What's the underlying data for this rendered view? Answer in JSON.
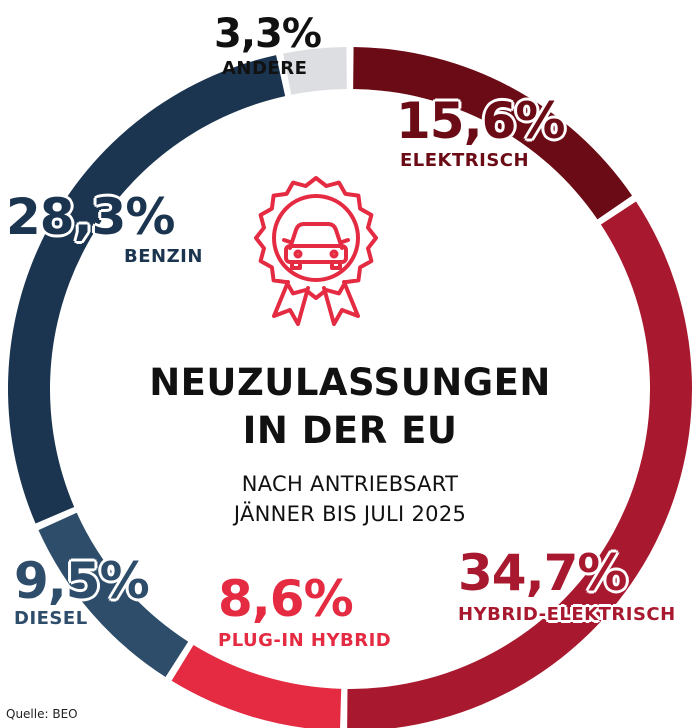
{
  "title_line1": "NEUZULASSUNGEN",
  "title_line2": "IN DER EU",
  "subtitle_line1": "NACH ANTRIEBSART",
  "subtitle_line2": "JÄNNER BIS JULI 2025",
  "source": "Quelle: BEO",
  "icon": "award-car-icon",
  "chart_data": {
    "type": "pie",
    "variant": "donut",
    "unit": "%",
    "slices": [
      {
        "name": "ELEKTRISCH",
        "value": 15.6,
        "label": "15,6%",
        "color": "#6b0b16"
      },
      {
        "name": "HYBRID-ELEKTRISCH",
        "value": 34.7,
        "label": "34,7%",
        "color": "#a8192f"
      },
      {
        "name": "PLUG-IN HYBRID",
        "value": 8.6,
        "label": "8,6%",
        "color": "#e42b42"
      },
      {
        "name": "DIESEL",
        "value": 9.5,
        "label": "9,5%",
        "color": "#2d4d6b"
      },
      {
        "name": "BENZIN",
        "value": 28.3,
        "label": "28,3%",
        "color": "#1b3550"
      },
      {
        "name": "ANDERE",
        "value": 3.3,
        "label": "3,3%",
        "color": "#dcdee1"
      }
    ]
  }
}
